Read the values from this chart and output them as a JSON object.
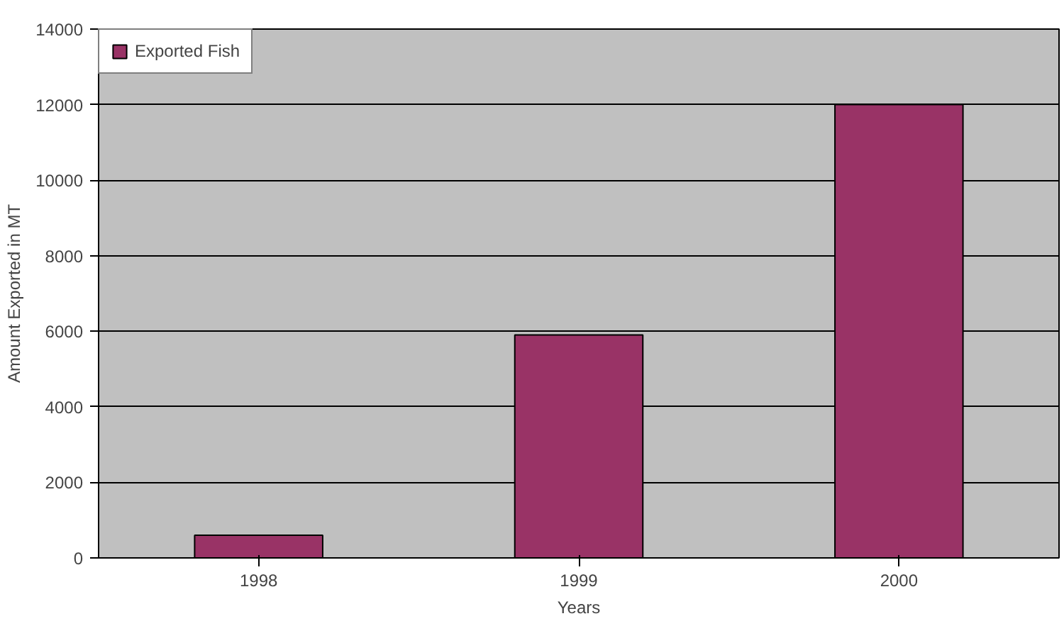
{
  "chart_data": {
    "type": "bar",
    "xlabel": "Years",
    "ylabel": "Amount Exported in MT",
    "categories": [
      "1998",
      "1999",
      "2000"
    ],
    "series": [
      {
        "name": "Exported Fish",
        "color": "#993366",
        "values": [
          600,
          5900,
          12000
        ]
      }
    ],
    "ylim": [
      0,
      14000
    ],
    "yticks": [
      0,
      2000,
      4000,
      6000,
      8000,
      10000,
      12000,
      14000
    ],
    "grid": "y",
    "legend": "top left"
  }
}
